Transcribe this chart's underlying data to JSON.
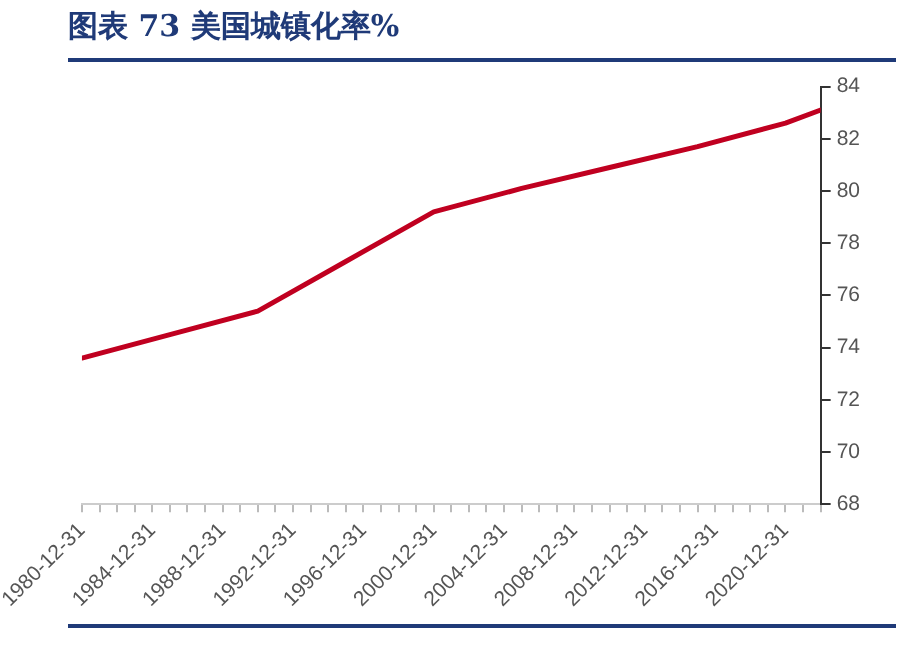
{
  "chart_data": {
    "type": "line",
    "title": "图表 73    美国城镇化率%",
    "x": [
      "1980-12-31",
      "1985-12-31",
      "1990-12-31",
      "1995-12-31",
      "2000-12-31",
      "2005-12-31",
      "2010-12-31",
      "2015-12-31",
      "2020-12-31",
      "2022-12-31"
    ],
    "series": [
      {
        "color": "#c00020",
        "values": [
          73.6,
          74.5,
          75.4,
          77.3,
          79.2,
          80.1,
          80.9,
          81.7,
          82.6,
          83.1
        ]
      }
    ],
    "xlim": [
      "1980-12-31",
      "2022-12-31"
    ],
    "xticks": [
      {
        "value": "1980-12-31",
        "label": "1980-12-31"
      },
      {
        "value": "1981-12-31",
        "label": null
      },
      {
        "value": "1982-12-31",
        "label": null
      },
      {
        "value": "1983-12-31",
        "label": null
      },
      {
        "value": "1984-12-31",
        "label": "1984-12-31"
      },
      {
        "value": "1985-12-31",
        "label": null
      },
      {
        "value": "1986-12-31",
        "label": null
      },
      {
        "value": "1987-12-31",
        "label": null
      },
      {
        "value": "1988-12-31",
        "label": "1988-12-31"
      },
      {
        "value": "1989-12-31",
        "label": null
      },
      {
        "value": "1990-12-31",
        "label": null
      },
      {
        "value": "1991-12-31",
        "label": null
      },
      {
        "value": "1992-12-31",
        "label": "1992-12-31"
      },
      {
        "value": "1993-12-31",
        "label": null
      },
      {
        "value": "1994-12-31",
        "label": null
      },
      {
        "value": "1995-12-31",
        "label": null
      },
      {
        "value": "1996-12-31",
        "label": "1996-12-31"
      },
      {
        "value": "1997-12-31",
        "label": null
      },
      {
        "value": "1998-12-31",
        "label": null
      },
      {
        "value": "1999-12-31",
        "label": null
      },
      {
        "value": "2000-12-31",
        "label": "2000-12-31"
      },
      {
        "value": "2001-12-31",
        "label": null
      },
      {
        "value": "2002-12-31",
        "label": null
      },
      {
        "value": "2003-12-31",
        "label": null
      },
      {
        "value": "2004-12-31",
        "label": "2004-12-31"
      },
      {
        "value": "2005-12-31",
        "label": null
      },
      {
        "value": "2006-12-31",
        "label": null
      },
      {
        "value": "2007-12-31",
        "label": null
      },
      {
        "value": "2008-12-31",
        "label": "2008-12-31"
      },
      {
        "value": "2009-12-31",
        "label": null
      },
      {
        "value": "2010-12-31",
        "label": null
      },
      {
        "value": "2011-12-31",
        "label": null
      },
      {
        "value": "2012-12-31",
        "label": "2012-12-31"
      },
      {
        "value": "2013-12-31",
        "label": null
      },
      {
        "value": "2014-12-31",
        "label": null
      },
      {
        "value": "2015-12-31",
        "label": null
      },
      {
        "value": "2016-12-31",
        "label": "2016-12-31"
      },
      {
        "value": "2017-12-31",
        "label": null
      },
      {
        "value": "2018-12-31",
        "label": null
      },
      {
        "value": "2019-12-31",
        "label": null
      },
      {
        "value": "2020-12-31",
        "label": "2020-12-31"
      },
      {
        "value": "2021-12-31",
        "label": null
      },
      {
        "value": "2022-12-31",
        "label": null
      }
    ],
    "ylim": [
      68,
      84
    ],
    "yticks": [
      68,
      70,
      72,
      74,
      76,
      78,
      80,
      82,
      84
    ],
    "grid": false,
    "legend": false,
    "marker": "none",
    "line_style": "solid"
  }
}
